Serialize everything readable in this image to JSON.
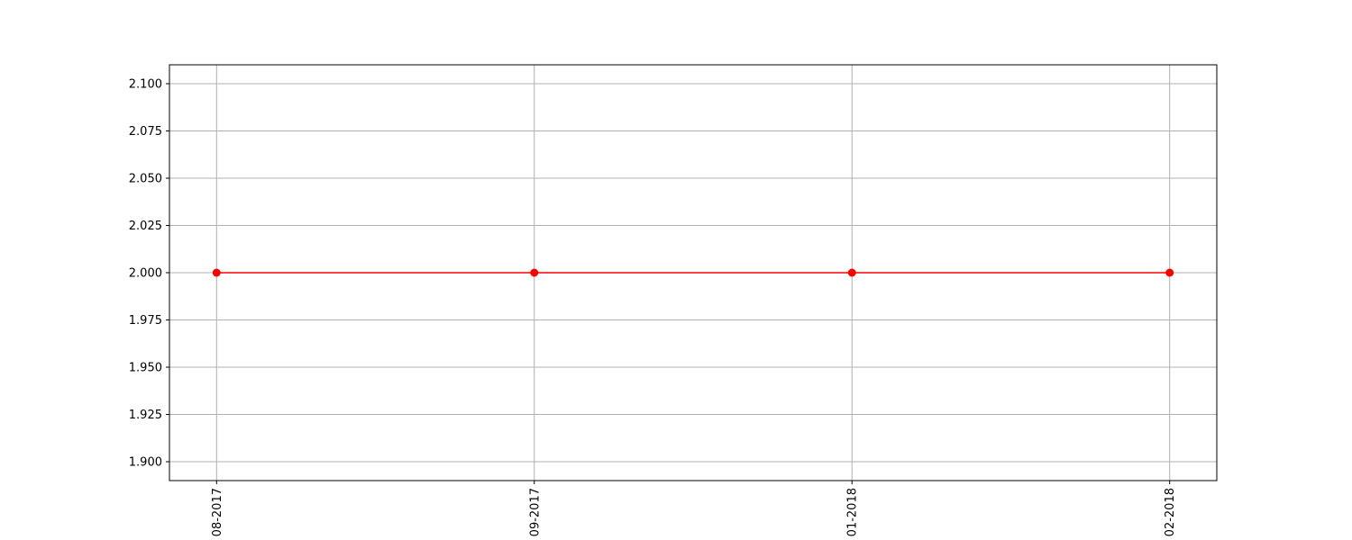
{
  "chart_data": {
    "type": "line",
    "title": "",
    "xlabel": "",
    "ylabel": "",
    "categories": [
      "08-2017",
      "09-2017",
      "01-2018",
      "02-2018"
    ],
    "series": [
      {
        "values": [
          2.0,
          2.0,
          2.0,
          2.0
        ],
        "color": "#ff0000",
        "marker": "circle"
      }
    ],
    "ylim": [
      1.89,
      2.11
    ],
    "yticks": [
      "1.900",
      "1.925",
      "1.950",
      "1.975",
      "2.000",
      "2.025",
      "2.050",
      "2.075",
      "2.100"
    ],
    "grid": true,
    "x_tick_rotation": "vertical"
  }
}
